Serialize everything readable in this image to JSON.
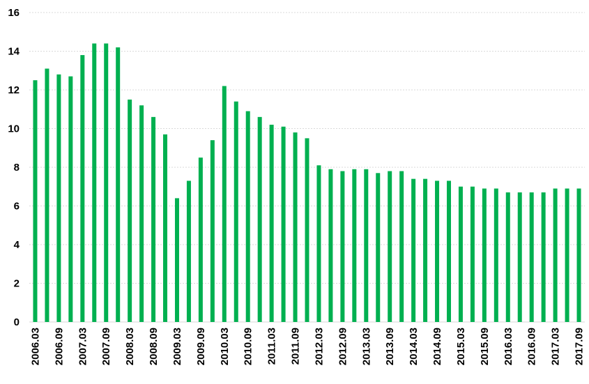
{
  "chart_data": {
    "type": "bar",
    "categories": [
      "2006.03",
      null,
      "2006.09",
      null,
      "2007.03",
      null,
      "2007.09",
      null,
      "2008.03",
      null,
      "2008.09",
      null,
      "2009.03",
      null,
      "2009.09",
      null,
      "2010.03",
      null,
      "2010.09",
      null,
      "2011.03",
      null,
      "2011.09",
      null,
      "2012.03",
      null,
      "2012.09",
      null,
      "2013.03",
      null,
      "2013.09",
      null,
      "2014.03",
      null,
      "2014.09",
      null,
      "2015.03",
      null,
      "2015.09",
      null,
      "2016.03",
      null,
      "2016.09",
      null,
      "2017.03",
      null,
      "2017.09"
    ],
    "values": [
      12.5,
      13.1,
      12.8,
      12.7,
      13.8,
      14.4,
      14.4,
      14.2,
      11.5,
      11.2,
      10.6,
      9.7,
      6.4,
      7.3,
      8.5,
      9.4,
      12.2,
      11.4,
      10.9,
      10.6,
      10.2,
      10.1,
      9.8,
      9.5,
      8.1,
      7.9,
      7.8,
      7.9,
      7.9,
      7.7,
      7.8,
      7.8,
      7.4,
      7.4,
      7.3,
      7.3,
      7.0,
      7.0,
      6.9,
      6.9,
      6.7,
      6.7,
      6.7,
      6.7,
      6.9,
      6.9,
      6.9
    ],
    "color": "#00b050",
    "ylim": [
      0,
      16
    ],
    "yticks": [
      0,
      2,
      4,
      6,
      8,
      10,
      12,
      14,
      16
    ],
    "grid": true
  }
}
